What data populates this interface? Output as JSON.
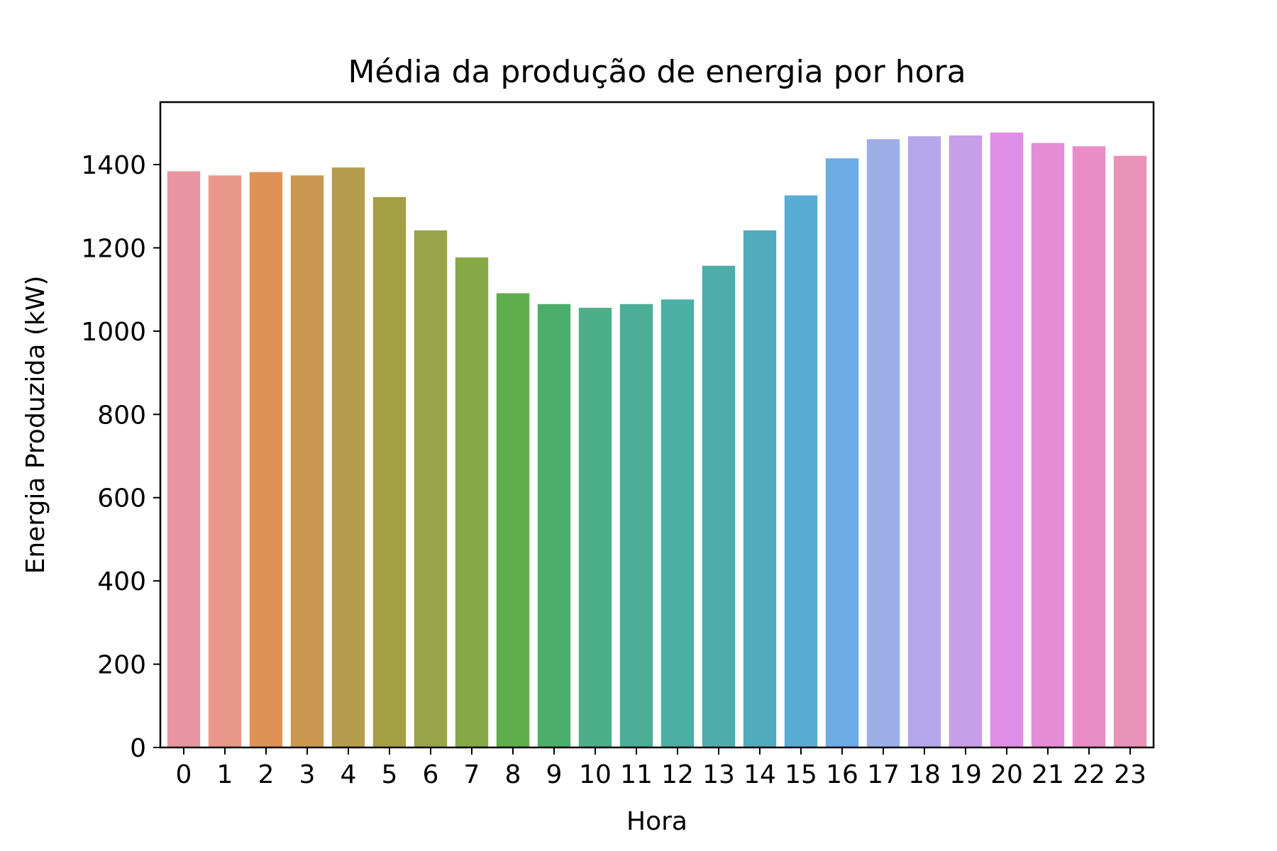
{
  "chart_data": {
    "type": "bar",
    "title": "Média da produção de energia por hora",
    "xlabel": "Hora",
    "ylabel": "Energia Produzida (kW)",
    "ylim": [
      0,
      1550
    ],
    "yticks": [
      0,
      200,
      400,
      600,
      800,
      1000,
      1200,
      1400
    ],
    "grid": false,
    "legend": "none",
    "categories": [
      "0",
      "1",
      "2",
      "3",
      "4",
      "5",
      "6",
      "7",
      "8",
      "9",
      "10",
      "11",
      "12",
      "13",
      "14",
      "15",
      "16",
      "17",
      "18",
      "19",
      "20",
      "21",
      "22",
      "23"
    ],
    "values": [
      1384,
      1374,
      1382,
      1374,
      1393,
      1322,
      1242,
      1177,
      1091,
      1065,
      1056,
      1065,
      1076,
      1157,
      1242,
      1326,
      1415,
      1461,
      1468,
      1470,
      1477,
      1452,
      1444,
      1421
    ],
    "colors": [
      "#ea96a2",
      "#e8978a",
      "#e09256",
      "#c9974f",
      "#b59d4d",
      "#a49f45",
      "#98a448",
      "#85a946",
      "#5fae4b",
      "#4cae6b",
      "#4daf89",
      "#4cae97",
      "#4caea4",
      "#4eadab",
      "#50abbd",
      "#58acd4",
      "#6dabe4",
      "#9caee8",
      "#b5a6ea",
      "#c79fe8",
      "#df8fe5",
      "#e68cd5",
      "#e88dc7",
      "#e993b8"
    ]
  }
}
